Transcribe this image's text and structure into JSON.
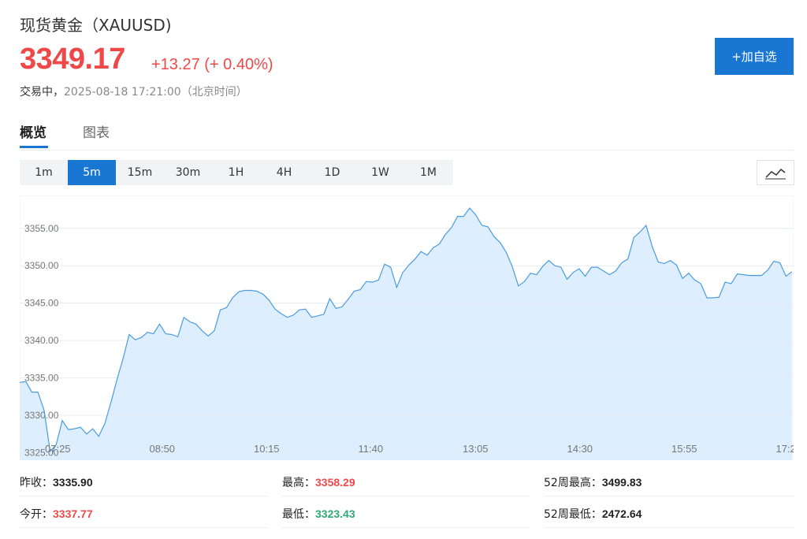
{
  "header": {
    "title": "现货黄金（XAUUSD)",
    "price": "3349.17",
    "change": "+13.27 (+ 0.40%)",
    "status": "交易中，",
    "timestamp": "2025-08-18 17:21:00（北京时间）",
    "add_button": "+加自选"
  },
  "tabs": [
    {
      "label": "概览",
      "active": true
    },
    {
      "label": "图表",
      "active": false
    }
  ],
  "periods": [
    {
      "label": "1m",
      "active": false
    },
    {
      "label": "5m",
      "active": true
    },
    {
      "label": "15m",
      "active": false
    },
    {
      "label": "30m",
      "active": false
    },
    {
      "label": "1H",
      "active": false
    },
    {
      "label": "4H",
      "active": false
    },
    {
      "label": "1D",
      "active": false
    },
    {
      "label": "1W",
      "active": false
    },
    {
      "label": "1M",
      "active": false
    }
  ],
  "chart_type_icon": "line-chart-icon",
  "colors": {
    "up": "#f04848",
    "down": "#2eaa77",
    "accent": "#1976d2",
    "line": "#4a9be0",
    "fill": "#ddeeff"
  },
  "chart_data": {
    "type": "area",
    "title": "",
    "xlabel": "",
    "ylabel": "",
    "ylim": [
      3324,
      3359.4
    ],
    "y_ticks": [
      "3325.00",
      "3330.00",
      "3335.00",
      "3340.00",
      "3345.00",
      "3350.00",
      "3355.00"
    ],
    "x_ticks": [
      "07:25",
      "08:50",
      "10:15",
      "11:40",
      "13:05",
      "14:30",
      "15:55",
      "17:2"
    ],
    "grid": true,
    "values": [
      3334.4,
      3334.5,
      3333.1,
      3333.1,
      3330.7,
      3325.2,
      3326.1,
      3329.3,
      3328.1,
      3328.2,
      3328.4,
      3327.5,
      3328.2,
      3327.2,
      3328.9,
      3331.7,
      3334.8,
      3337.6,
      3340.8,
      3340.1,
      3340.4,
      3341.1,
      3340.9,
      3342.2,
      3340.9,
      3340.8,
      3340.5,
      3343.1,
      3342.5,
      3342.2,
      3341.3,
      3340.6,
      3341.3,
      3344.1,
      3344.4,
      3345.7,
      3346.5,
      3346.7,
      3346.7,
      3346.6,
      3346.2,
      3345.4,
      3344.2,
      3343.6,
      3343.1,
      3343.4,
      3344.1,
      3344.2,
      3343.1,
      3343.3,
      3343.5,
      3345.6,
      3344.3,
      3344.5,
      3345.5,
      3346.6,
      3346.8,
      3347.9,
      3347.8,
      3348.1,
      3350.2,
      3349.8,
      3347.1,
      3349.1,
      3350.1,
      3350.9,
      3351.9,
      3351.4,
      3352.4,
      3352.9,
      3354.2,
      3355.1,
      3356.6,
      3356.6,
      3357.7,
      3356.8,
      3355.4,
      3355.2,
      3353.9,
      3353.1,
      3351.8,
      3349.9,
      3347.3,
      3347.9,
      3349.0,
      3348.8,
      3349.9,
      3350.7,
      3350.0,
      3349.8,
      3348.2,
      3349.1,
      3349.6,
      3348.6,
      3349.8,
      3349.8,
      3349.3,
      3348.8,
      3349.3,
      3350.4,
      3350.9,
      3353.8,
      3354.5,
      3355.4,
      3352.6,
      3350.5,
      3350.3,
      3350.7,
      3350.1,
      3348.3,
      3349.0,
      3348.1,
      3347.6,
      3345.7,
      3345.7,
      3345.8,
      3347.8,
      3347.6,
      3348.9,
      3348.8,
      3348.7,
      3348.7,
      3348.7,
      3349.4,
      3350.6,
      3350.4,
      3348.6,
      3349.2
    ]
  },
  "stats": [
    {
      "label": "昨收：",
      "value": "3335.90",
      "tone": "neutral"
    },
    {
      "label": "最高：",
      "value": "3358.29",
      "tone": "up"
    },
    {
      "label": "52周最高：",
      "value": "3499.83",
      "tone": "neutral"
    },
    {
      "label": "今开：",
      "value": "3337.77",
      "tone": "up"
    },
    {
      "label": "最低：",
      "value": "3323.43",
      "tone": "down"
    },
    {
      "label": "52周最低：",
      "value": "2472.64",
      "tone": "neutral"
    }
  ]
}
